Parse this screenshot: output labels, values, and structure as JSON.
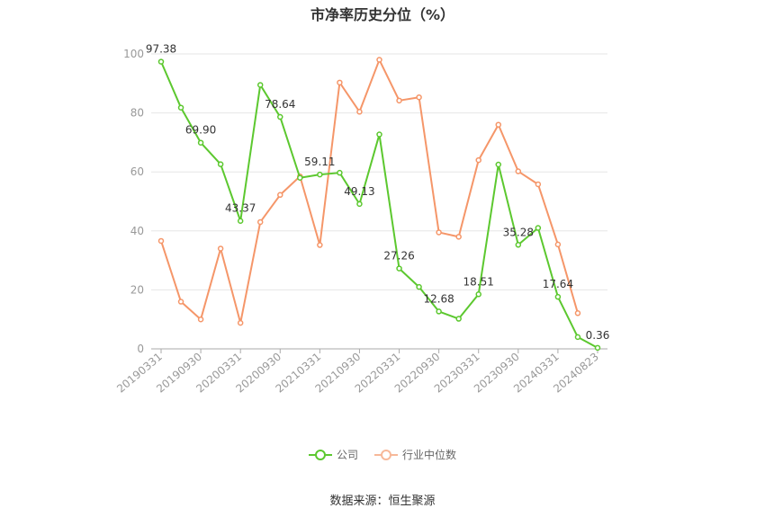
{
  "chart_data": {
    "type": "line",
    "title": "市净率历史分位（%）",
    "ylim": [
      0,
      100
    ],
    "yticks": [
      0,
      20,
      40,
      60,
      80,
      100
    ],
    "x_tick_labels": [
      "20190331",
      "20190930",
      "20200331",
      "20200930",
      "20210331",
      "20210930",
      "20220331",
      "20220930",
      "20230331",
      "20230930",
      "20240331",
      "20240823"
    ],
    "x": [
      "20190331",
      "20190630",
      "20190930",
      "20191231",
      "20200331",
      "20200630",
      "20200930",
      "20201231",
      "20210331",
      "20210630",
      "20210930",
      "20211231",
      "20220331",
      "20220630",
      "20220930",
      "20221231",
      "20230331",
      "20230630",
      "20230930",
      "20231231",
      "20240331",
      "20240630",
      "20240823"
    ],
    "series": [
      {
        "name": "公司",
        "color": "#5cc82f",
        "values": [
          97.38,
          81.8,
          69.9,
          62.6,
          43.37,
          89.5,
          78.64,
          58.0,
          59.11,
          59.7,
          49.13,
          72.7,
          27.26,
          21.0,
          12.68,
          10.2,
          18.51,
          62.5,
          35.28,
          41.0,
          17.64,
          4.0,
          0.36
        ],
        "labels": {
          "0": "97.38",
          "2": "69.90",
          "4": "43.37",
          "6": "78.64",
          "8": "59.11",
          "10": "49.13",
          "12": "27.26",
          "14": "12.68",
          "16": "18.51",
          "18": "35.28",
          "20": "17.64",
          "22": "0.36"
        }
      },
      {
        "name": "行业中位数",
        "color": "#f59669",
        "values": [
          36.6,
          16.0,
          10.0,
          34.0,
          8.8,
          43.0,
          52.2,
          58.5,
          35.2,
          90.3,
          80.4,
          98.0,
          84.2,
          85.3,
          39.5,
          38.0,
          64.0,
          76.0,
          60.2,
          55.8,
          35.4,
          12.1,
          null
        ]
      }
    ],
    "grid": true,
    "legend_position": "bottom"
  },
  "source_text": "数据来源：恒生聚源"
}
